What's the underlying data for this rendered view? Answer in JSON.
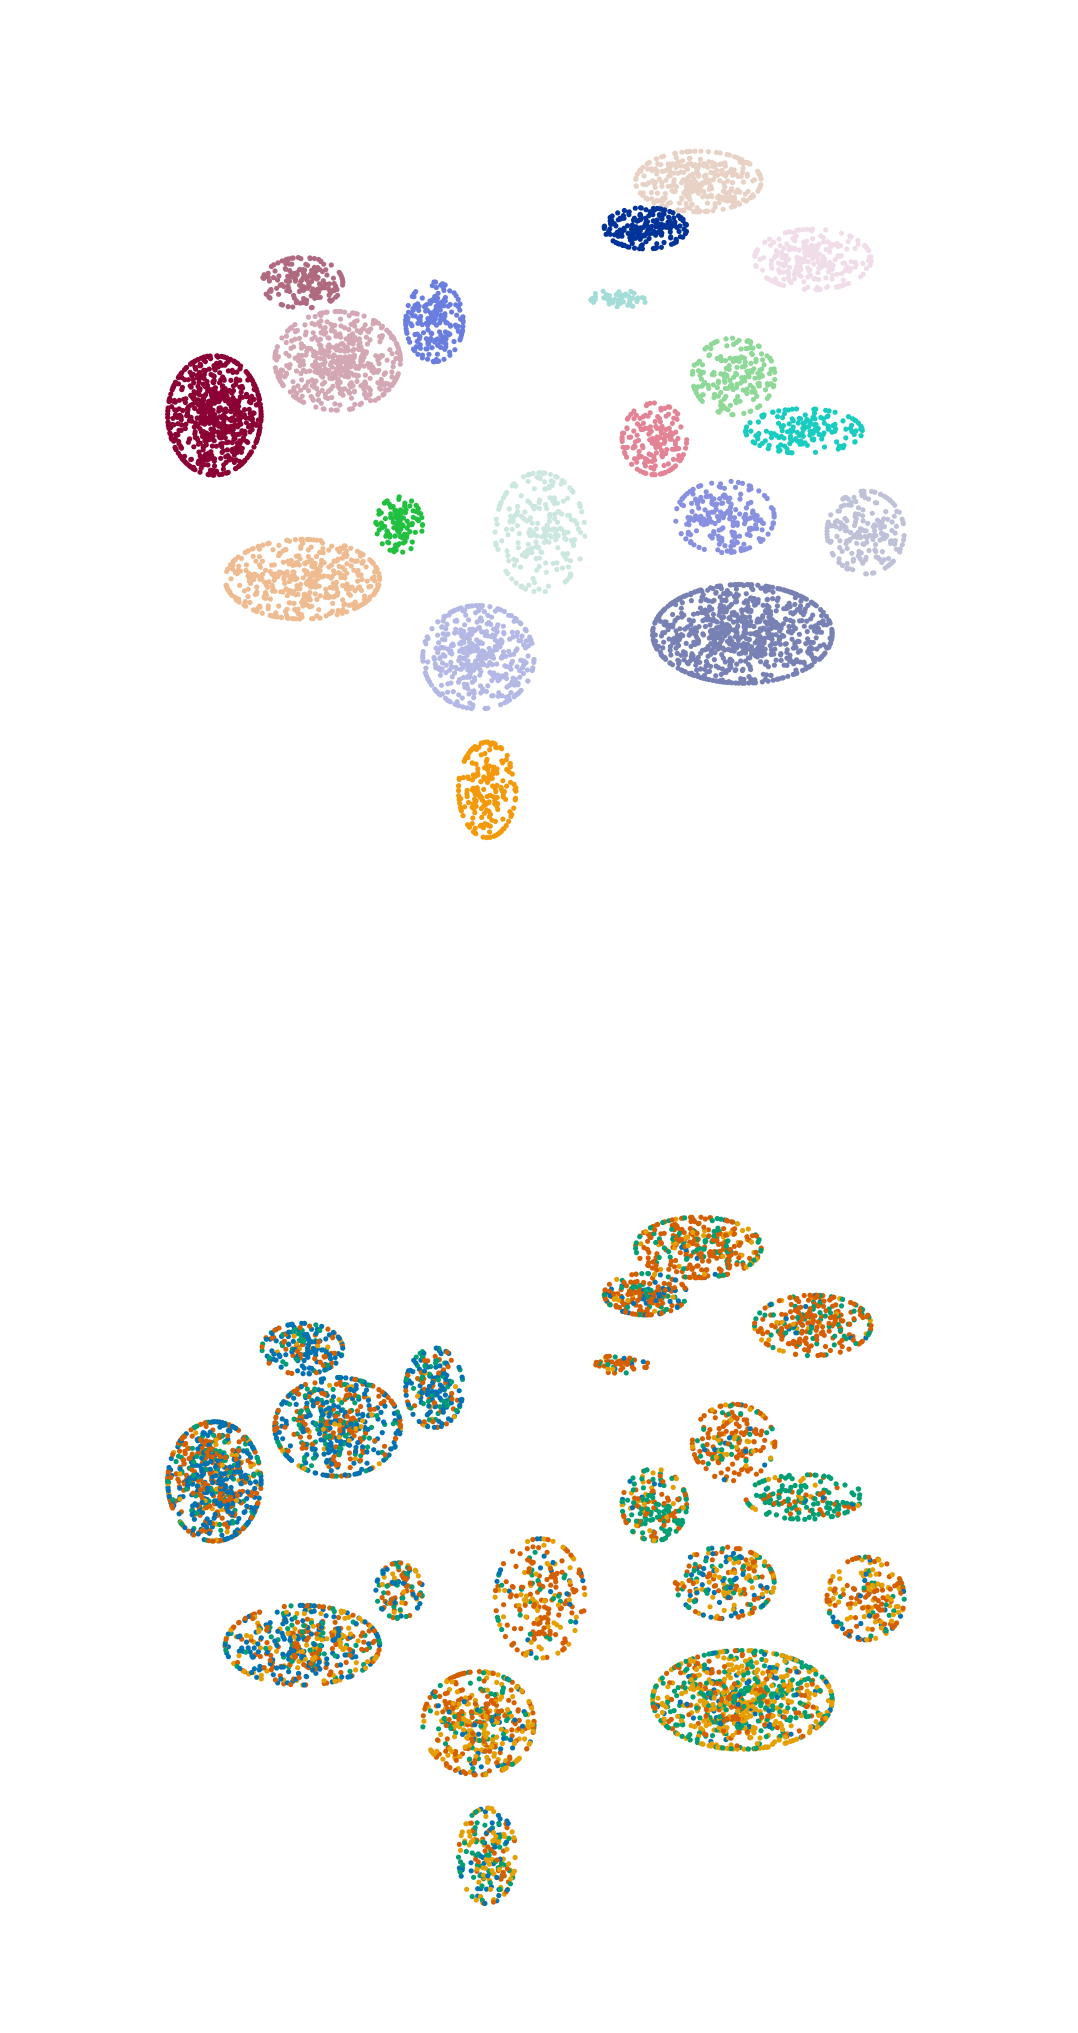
{
  "chart_data": [
    {
      "type": "scatter",
      "title": "",
      "xlabel": "",
      "ylabel": "",
      "grid": false,
      "axes_visible": false,
      "legend": "none",
      "xlim": [
        0,
        100
      ],
      "ylim": [
        0,
        100
      ],
      "color_by": "cluster",
      "clusters": [
        {
          "name": "",
          "color": "#8b0035",
          "center": [
            13,
            43
          ],
          "spread": [
            5.2,
            7.5
          ],
          "n": 700
        },
        {
          "name": "",
          "color": "#d3a7b3",
          "center": [
            27,
            36
          ],
          "spread": [
            7.0,
            6.2
          ],
          "n": 520
        },
        {
          "name": "",
          "color": "#b06a80",
          "center": [
            23,
            26
          ],
          "spread": [
            4.5,
            3.2
          ],
          "n": 180
        },
        {
          "name": "",
          "color": "#6a7ee0",
          "center": [
            38,
            31
          ],
          "spread": [
            3.2,
            5.0
          ],
          "n": 200
        },
        {
          "name": "",
          "color": "#efbb90",
          "center": [
            23,
            64
          ],
          "spread": [
            8.6,
            5.0
          ],
          "n": 460
        },
        {
          "name": "",
          "color": "#22c040",
          "center": [
            34,
            57
          ],
          "spread": [
            2.6,
            3.5
          ],
          "n": 110
        },
        {
          "name": "",
          "color": "#b4b8e4",
          "center": [
            43,
            74
          ],
          "spread": [
            6.2,
            6.5
          ],
          "n": 420
        },
        {
          "name": "",
          "color": "#cce6e0",
          "center": [
            50,
            58
          ],
          "spread": [
            5.0,
            7.5
          ],
          "n": 230
        },
        {
          "name": "",
          "color": "#f4990a",
          "center": [
            44,
            91
          ],
          "spread": [
            3.2,
            6.0
          ],
          "n": 200
        },
        {
          "name": "",
          "color": "#e8d1c5",
          "center": [
            68,
            13
          ],
          "spread": [
            7.0,
            3.8
          ],
          "n": 330
        },
        {
          "name": "",
          "color": "#003399",
          "center": [
            62,
            19
          ],
          "spread": [
            4.6,
            2.6
          ],
          "n": 200
        },
        {
          "name": "",
          "color": "#f0dde9",
          "center": [
            81,
            23
          ],
          "spread": [
            6.5,
            3.8
          ],
          "n": 260
        },
        {
          "name": "",
          "color": "#a4dcd8",
          "center": [
            59,
            28
          ],
          "spread": [
            3.2,
            1.1
          ],
          "n": 50
        },
        {
          "name": "",
          "color": "#8ed898",
          "center": [
            72,
            38
          ],
          "spread": [
            4.6,
            4.8
          ],
          "n": 190
        },
        {
          "name": "",
          "color": "#e38396",
          "center": [
            63,
            46
          ],
          "spread": [
            3.6,
            4.5
          ],
          "n": 180
        },
        {
          "name": "",
          "color": "#18ccc0",
          "center": [
            80,
            45
          ],
          "spread": [
            6.5,
            2.8
          ],
          "n": 170
        },
        {
          "name": "",
          "color": "#8890e0",
          "center": [
            71,
            56
          ],
          "spread": [
            5.5,
            4.5
          ],
          "n": 220
        },
        {
          "name": "",
          "color": "#bec1d8",
          "center": [
            87,
            58
          ],
          "spread": [
            4.3,
            5.2
          ],
          "n": 190
        },
        {
          "name": "",
          "color": "#7881b4",
          "center": [
            73,
            71
          ],
          "spread": [
            10.0,
            6.2
          ],
          "n": 820
        }
      ]
    },
    {
      "type": "scatter",
      "title": "",
      "xlabel": "",
      "ylabel": "",
      "grid": false,
      "axes_visible": false,
      "legend": "none",
      "xlim": [
        0,
        100
      ],
      "ylim": [
        0,
        100
      ],
      "color_by": "group",
      "groups": [
        {
          "name": "",
          "color": "#0072b2"
        },
        {
          "name": "",
          "color": "#d55e00"
        },
        {
          "name": "",
          "color": "#009e73"
        },
        {
          "name": "",
          "color": "#e69f00"
        }
      ],
      "regions": [
        {
          "center": [
            13,
            43
          ],
          "spread": [
            5.2,
            7.5
          ],
          "n": 700,
          "mix": [
            0.42,
            0.36,
            0.14,
            0.08
          ]
        },
        {
          "center": [
            27,
            36
          ],
          "spread": [
            7.0,
            6.2
          ],
          "n": 520,
          "mix": [
            0.45,
            0.28,
            0.19,
            0.08
          ]
        },
        {
          "center": [
            23,
            26
          ],
          "spread": [
            4.5,
            3.2
          ],
          "n": 180,
          "mix": [
            0.55,
            0.2,
            0.17,
            0.08
          ]
        },
        {
          "center": [
            38,
            31
          ],
          "spread": [
            3.2,
            5.0
          ],
          "n": 200,
          "mix": [
            0.5,
            0.22,
            0.22,
            0.06
          ]
        },
        {
          "center": [
            23,
            64
          ],
          "spread": [
            8.6,
            5.0
          ],
          "n": 460,
          "mix": [
            0.3,
            0.3,
            0.15,
            0.25
          ]
        },
        {
          "center": [
            34,
            57
          ],
          "spread": [
            2.6,
            3.5
          ],
          "n": 110,
          "mix": [
            0.25,
            0.3,
            0.25,
            0.2
          ]
        },
        {
          "center": [
            43,
            74
          ],
          "spread": [
            6.2,
            6.5
          ],
          "n": 420,
          "mix": [
            0.1,
            0.38,
            0.12,
            0.4
          ]
        },
        {
          "center": [
            50,
            58
          ],
          "spread": [
            5.0,
            7.5
          ],
          "n": 230,
          "mix": [
            0.08,
            0.55,
            0.12,
            0.25
          ]
        },
        {
          "center": [
            44,
            91
          ],
          "spread": [
            3.2,
            6.0
          ],
          "n": 200,
          "mix": [
            0.2,
            0.15,
            0.25,
            0.4
          ]
        },
        {
          "center": [
            68,
            13
          ],
          "spread": [
            7.0,
            3.8
          ],
          "n": 330,
          "mix": [
            0.05,
            0.6,
            0.25,
            0.1
          ]
        },
        {
          "center": [
            62,
            19
          ],
          "spread": [
            4.6,
            2.6
          ],
          "n": 200,
          "mix": [
            0.18,
            0.55,
            0.17,
            0.1
          ]
        },
        {
          "center": [
            81,
            23
          ],
          "spread": [
            6.5,
            3.8
          ],
          "n": 260,
          "mix": [
            0.04,
            0.62,
            0.26,
            0.08
          ]
        },
        {
          "center": [
            59,
            28
          ],
          "spread": [
            3.2,
            1.1
          ],
          "n": 50,
          "mix": [
            0.1,
            0.55,
            0.25,
            0.1
          ]
        },
        {
          "center": [
            72,
            38
          ],
          "spread": [
            4.6,
            4.8
          ],
          "n": 190,
          "mix": [
            0.05,
            0.65,
            0.15,
            0.15
          ]
        },
        {
          "center": [
            63,
            46
          ],
          "spread": [
            3.6,
            4.5
          ],
          "n": 180,
          "mix": [
            0.05,
            0.3,
            0.5,
            0.15
          ]
        },
        {
          "center": [
            80,
            45
          ],
          "spread": [
            6.5,
            2.8
          ],
          "n": 170,
          "mix": [
            0.05,
            0.2,
            0.65,
            0.1
          ]
        },
        {
          "center": [
            71,
            56
          ],
          "spread": [
            5.5,
            4.5
          ],
          "n": 220,
          "mix": [
            0.2,
            0.3,
            0.25,
            0.25
          ]
        },
        {
          "center": [
            87,
            58
          ],
          "spread": [
            4.3,
            5.2
          ],
          "n": 190,
          "mix": [
            0.15,
            0.4,
            0.1,
            0.35
          ]
        },
        {
          "center": [
            73,
            71
          ],
          "spread": [
            10.0,
            6.2
          ],
          "n": 820,
          "mix": [
            0.08,
            0.22,
            0.3,
            0.4
          ]
        }
      ]
    }
  ]
}
